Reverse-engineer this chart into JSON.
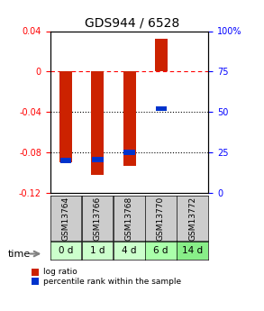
{
  "title": "GDS944 / 6528",
  "samples": [
    "GSM13764",
    "GSM13766",
    "GSM13768",
    "GSM13770",
    "GSM13772"
  ],
  "time_labels": [
    "0 d",
    "1 d",
    "4 d",
    "6 d",
    "14 d"
  ],
  "log_ratio": [
    -0.09,
    -0.102,
    -0.093,
    0.032,
    0.0
  ],
  "percentile": [
    20.0,
    20.5,
    25.0,
    52.0,
    0.0
  ],
  "ylim_left": [
    -0.12,
    0.04
  ],
  "ylim_right": [
    0,
    100
  ],
  "left_ticks": [
    0.04,
    0.0,
    -0.04,
    -0.08,
    -0.12
  ],
  "left_tick_labels": [
    "0.04",
    "0",
    "-0.04",
    "-0.08",
    "-0.12"
  ],
  "right_ticks": [
    100,
    75,
    50,
    25,
    0
  ],
  "right_tick_labels": [
    "100%",
    "75",
    "50",
    "25",
    "0"
  ],
  "bar_color_red": "#cc2200",
  "bar_color_blue": "#0033cc",
  "bg_color": "#ffffff",
  "sample_bg": "#cccccc",
  "time_bg_colors": [
    "#ccffcc",
    "#ccffcc",
    "#ccffcc",
    "#aaffaa",
    "#88ee88"
  ],
  "legend_red": "log ratio",
  "legend_blue": "percentile rank within the sample",
  "bar_width": 0.4
}
